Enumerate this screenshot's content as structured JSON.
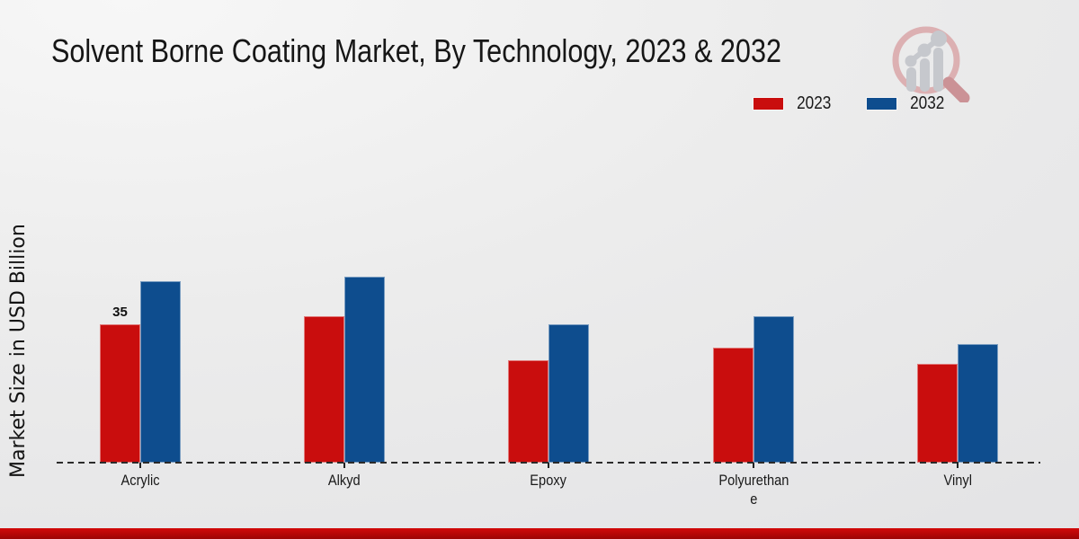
{
  "title": "Solvent Borne Coating Market, By Technology, 2023 & 2032",
  "ylabel": "Market Size in USD Billion",
  "legend": {
    "items": [
      {
        "label": "2023",
        "color": "#c90d0d"
      },
      {
        "label": "2032",
        "color": "#0e4d8e"
      }
    ]
  },
  "branding": {
    "logo_name": "magnifier-growth-chart-logo",
    "footer_band_color": "#c00707"
  },
  "chart_data": {
    "type": "bar",
    "title": "Solvent Borne Coating Market, By Technology, 2023 & 2032",
    "xlabel": "",
    "ylabel": "Market Size in USD Billion",
    "categories": [
      "Acrylic",
      "Alkyd",
      "Epoxy",
      "Polyurethane",
      "Vinyl"
    ],
    "category_label_lines": [
      [
        "Acrylic"
      ],
      [
        "Alkyd"
      ],
      [
        "Epoxy"
      ],
      [
        "Polyurethan",
        "e"
      ],
      [
        "Vinyl"
      ]
    ],
    "series": [
      {
        "name": "2023",
        "color": "#c90d0d",
        "values": [
          35,
          37,
          26,
          29,
          25
        ]
      },
      {
        "name": "2032",
        "color": "#0e4d8e",
        "values": [
          46,
          47,
          35,
          37,
          30
        ]
      }
    ],
    "annotations": [
      {
        "category_index": 0,
        "series_index": 0,
        "text": "35"
      }
    ],
    "ylim": [
      0,
      50
    ],
    "grid": false,
    "axis_style": "dashed zero baseline only, no y ticks",
    "legend_position": "top-right"
  }
}
